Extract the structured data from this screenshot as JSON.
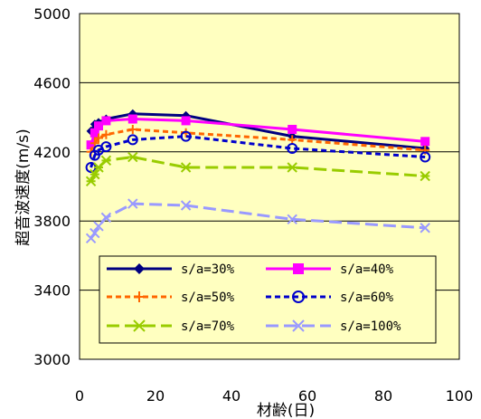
{
  "chart_data": {
    "type": "line",
    "title": "",
    "xlabel": "材齢(日)",
    "ylabel": "超音波速度(m/s)",
    "xlim": [
      0,
      100
    ],
    "ylim": [
      3000,
      5000
    ],
    "xticks": [
      0,
      20,
      40,
      60,
      80,
      100
    ],
    "yticks": [
      3000,
      3400,
      3800,
      4200,
      4600,
      5000
    ],
    "grid": "horizontal",
    "legend_position": "bottom",
    "plot_background": "#FFFFC0",
    "series": [
      {
        "name": "s/a=30%",
        "color": "#000080",
        "dash": "solid",
        "marker": "diamond",
        "x": [
          3,
          4,
          5,
          7,
          14,
          28,
          56,
          91
        ],
        "y": [
          4320,
          4360,
          4370,
          4390,
          4420,
          4410,
          4290,
          4220
        ]
      },
      {
        "name": "s/a=40%",
        "color": "#FF00FF",
        "dash": "solid",
        "marker": "square",
        "x": [
          3,
          4,
          5,
          7,
          14,
          28,
          56,
          91
        ],
        "y": [
          4240,
          4310,
          4350,
          4380,
          4390,
          4380,
          4330,
          4260
        ]
      },
      {
        "name": "s/a=50%",
        "color": "#FF6600",
        "dash": "dash",
        "marker": "plus",
        "x": [
          3,
          4,
          5,
          7,
          14,
          28,
          56,
          91
        ],
        "y": [
          4200,
          4250,
          4280,
          4300,
          4330,
          4310,
          4270,
          4210
        ]
      },
      {
        "name": "s/a=60%",
        "color": "#0000CC",
        "dash": "dash",
        "marker": "circle",
        "x": [
          3,
          4,
          5,
          7,
          14,
          28,
          56,
          91
        ],
        "y": [
          4110,
          4180,
          4210,
          4230,
          4270,
          4290,
          4220,
          4170
        ]
      },
      {
        "name": "s/a=70%",
        "color": "#99CC00",
        "dash": "longdash",
        "marker": "star",
        "x": [
          3,
          4,
          5,
          7,
          14,
          28,
          56,
          91
        ],
        "y": [
          4030,
          4070,
          4110,
          4150,
          4170,
          4110,
          4110,
          4060
        ]
      },
      {
        "name": "s/a=100%",
        "color": "#9999FF",
        "dash": "longdash",
        "marker": "x",
        "x": [
          3,
          4,
          5,
          7,
          14,
          28,
          56,
          91
        ],
        "y": [
          3700,
          3730,
          3770,
          3820,
          3900,
          3890,
          3810,
          3760
        ]
      }
    ]
  }
}
